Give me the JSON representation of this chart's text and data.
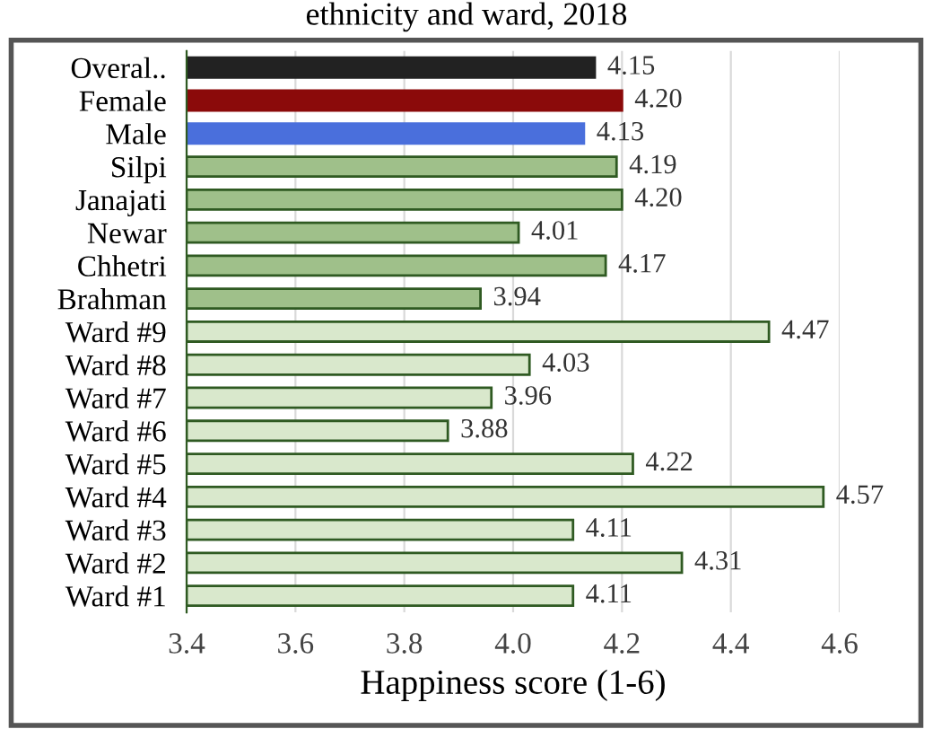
{
  "chart_data": {
    "type": "bar",
    "orientation": "horizontal",
    "title": "ethnicity and ward, 2018",
    "xlabel": "Happiness score (1-6)",
    "categories": [
      "Overal..",
      "Female",
      "Male",
      "Silpi",
      "Janajati",
      "Newar",
      "Chhetri",
      "Brahman",
      "Ward #9",
      "Ward #8",
      "Ward #7",
      "Ward #6",
      "Ward #5",
      "Ward #4",
      "Ward #3",
      "Ward #2",
      "Ward #1"
    ],
    "values": [
      4.15,
      4.2,
      4.13,
      4.19,
      4.2,
      4.01,
      4.17,
      3.94,
      4.47,
      4.03,
      3.96,
      3.88,
      4.22,
      4.57,
      4.11,
      4.31,
      4.11
    ],
    "colors": [
      "#222222",
      "#8b0a0a",
      "#4a6fdc",
      "#9fc08a",
      "#9fc08a",
      "#9fc08a",
      "#9fc08a",
      "#9fc08a",
      "#d9e8cc",
      "#d9e8cc",
      "#d9e8cc",
      "#d9e8cc",
      "#d9e8cc",
      "#d9e8cc",
      "#d9e8cc",
      "#d9e8cc",
      "#d9e8cc"
    ],
    "xlim": [
      3.4,
      4.6
    ],
    "xticks": [
      {
        "value": 3.4,
        "label": "3.4"
      },
      {
        "value": 3.6,
        "label": "3.6"
      },
      {
        "value": 3.8,
        "label": "3.8"
      },
      {
        "value": 4.0,
        "label": "4.0"
      },
      {
        "value": 4.2,
        "label": "4.2"
      },
      {
        "value": 4.4,
        "label": "4.4"
      },
      {
        "value": 4.6,
        "label": "4.6"
      }
    ],
    "value_labels": [
      "4.15",
      "4.20",
      "4.13",
      "4.19",
      "4.20",
      "4.01",
      "4.17",
      "3.94",
      "4.47",
      "4.03",
      "3.96",
      "3.88",
      "4.22",
      "4.57",
      "4.11",
      "4.31",
      "4.11"
    ],
    "grid": "x"
  }
}
